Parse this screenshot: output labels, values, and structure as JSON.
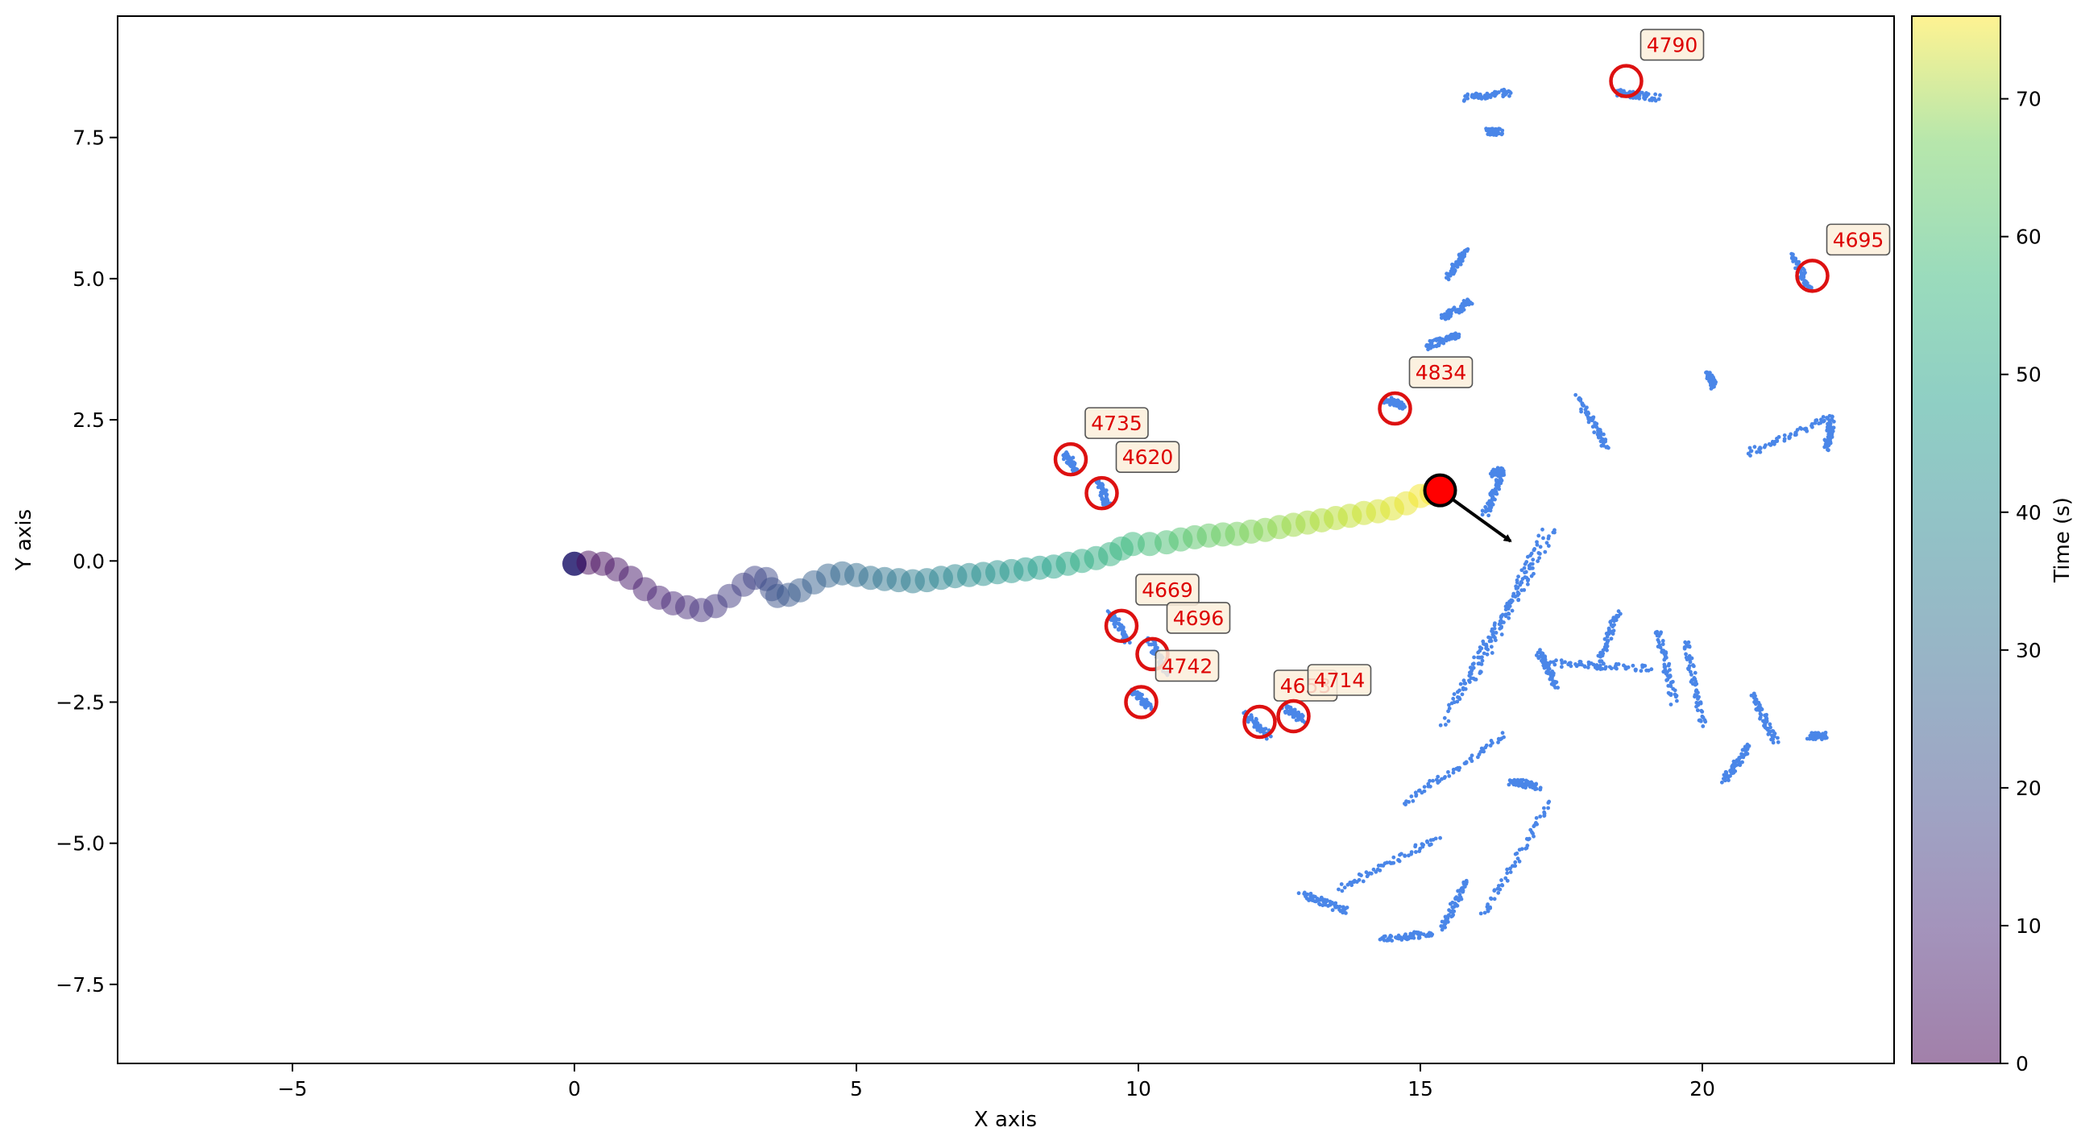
{
  "chart_data": {
    "type": "scatter",
    "xlabel": "X axis",
    "ylabel": "Y axis",
    "xlim": [
      -8.1,
      23.4
    ],
    "ylim": [
      -8.9,
      9.65
    ],
    "xticks": [
      -5,
      0,
      5,
      10,
      15,
      20
    ],
    "yticks": [
      -7.5,
      -5.0,
      -2.5,
      0.0,
      2.5,
      5.0,
      7.5
    ],
    "xtick_labels": [
      "−5",
      "0",
      "5",
      "10",
      "15",
      "20"
    ],
    "ytick_labels": [
      "−7.5",
      "−5.0",
      "−2.5",
      "0.0",
      "2.5",
      "5.0",
      "7.5"
    ],
    "colorbar": {
      "label": "Time (s)",
      "range": [
        0,
        76
      ],
      "ticks": [
        0,
        10,
        20,
        30,
        40,
        50,
        60,
        70
      ],
      "colormap": "viridis",
      "alpha": 0.5
    },
    "trajectory": {
      "points": [
        [
          0.0,
          -0.05
        ],
        [
          0.25,
          -0.03
        ],
        [
          0.5,
          -0.05
        ],
        [
          0.75,
          -0.15
        ],
        [
          1.0,
          -0.3
        ],
        [
          1.25,
          -0.5
        ],
        [
          1.5,
          -0.65
        ],
        [
          1.75,
          -0.75
        ],
        [
          2.0,
          -0.82
        ],
        [
          2.25,
          -0.87
        ],
        [
          2.5,
          -0.8
        ],
        [
          2.75,
          -0.62
        ],
        [
          3.0,
          -0.42
        ],
        [
          3.2,
          -0.3
        ],
        [
          3.4,
          -0.32
        ],
        [
          3.5,
          -0.5
        ],
        [
          3.6,
          -0.62
        ],
        [
          3.8,
          -0.6
        ],
        [
          4.0,
          -0.52
        ],
        [
          4.25,
          -0.38
        ],
        [
          4.5,
          -0.26
        ],
        [
          4.75,
          -0.22
        ],
        [
          5.0,
          -0.25
        ],
        [
          5.25,
          -0.3
        ],
        [
          5.5,
          -0.32
        ],
        [
          5.75,
          -0.34
        ],
        [
          6.0,
          -0.36
        ],
        [
          6.25,
          -0.34
        ],
        [
          6.5,
          -0.3
        ],
        [
          6.75,
          -0.27
        ],
        [
          7.0,
          -0.25
        ],
        [
          7.25,
          -0.23
        ],
        [
          7.5,
          -0.2
        ],
        [
          7.75,
          -0.18
        ],
        [
          8.0,
          -0.15
        ],
        [
          8.25,
          -0.12
        ],
        [
          8.5,
          -0.1
        ],
        [
          8.75,
          -0.05
        ],
        [
          9.0,
          0.0
        ],
        [
          9.25,
          0.05
        ],
        [
          9.5,
          0.12
        ],
        [
          9.7,
          0.22
        ],
        [
          9.9,
          0.3
        ],
        [
          10.2,
          0.3
        ],
        [
          10.5,
          0.33
        ],
        [
          10.75,
          0.38
        ],
        [
          11.0,
          0.42
        ],
        [
          11.25,
          0.45
        ],
        [
          11.5,
          0.47
        ],
        [
          11.75,
          0.48
        ],
        [
          12.0,
          0.52
        ],
        [
          12.25,
          0.55
        ],
        [
          12.5,
          0.6
        ],
        [
          12.75,
          0.64
        ],
        [
          13.0,
          0.68
        ],
        [
          13.25,
          0.72
        ],
        [
          13.5,
          0.76
        ],
        [
          13.75,
          0.8
        ],
        [
          14.0,
          0.85
        ],
        [
          14.25,
          0.88
        ],
        [
          14.5,
          0.93
        ],
        [
          14.75,
          1.02
        ],
        [
          15.0,
          1.15
        ],
        [
          15.2,
          1.2
        ]
      ],
      "time_range": [
        0,
        76
      ]
    },
    "current_pose": {
      "x": 15.35,
      "y": 1.25,
      "heading_end": [
        16.6,
        0.35
      ]
    },
    "obstacle_color": "#4a86e8",
    "obstacles": [
      {
        "x": [
          16.15,
          16.45
        ],
        "y": [
          0.85,
          1.55
        ]
      },
      {
        "x": [
          16.3,
          16.45
        ],
        "y": [
          1.55,
          1.6
        ]
      },
      {
        "x": [
          15.4,
          17.0
        ],
        "y": [
          -2.9,
          0.0
        ]
      },
      {
        "x": [
          15.6,
          17.2
        ],
        "y": [
          -2.5,
          0.5
        ]
      },
      {
        "x": [
          15.9,
          17.35
        ],
        "y": [
          -2.2,
          0.55
        ]
      },
      {
        "x": [
          17.2,
          19.1
        ],
        "y": [
          -1.8,
          -1.9
        ]
      },
      {
        "x": [
          17.1,
          17.4
        ],
        "y": [
          -1.6,
          -2.2
        ]
      },
      {
        "x": [
          18.15,
          18.5
        ],
        "y": [
          -1.9,
          -0.9
        ]
      },
      {
        "x": [
          19.2,
          19.5
        ],
        "y": [
          -1.2,
          -2.5
        ]
      },
      {
        "x": [
          19.7,
          20.0
        ],
        "y": [
          -1.4,
          -2.9
        ]
      },
      {
        "x": [
          14.7,
          16.5
        ],
        "y": [
          -4.3,
          -3.1
        ]
      },
      {
        "x": [
          13.6,
          15.3
        ],
        "y": [
          -5.8,
          -4.9
        ]
      },
      {
        "x": [
          12.9,
          13.7
        ],
        "y": [
          -5.9,
          -6.2
        ]
      },
      {
        "x": [
          14.3,
          15.2
        ],
        "y": [
          -6.7,
          -6.6
        ]
      },
      {
        "x": [
          15.4,
          15.8
        ],
        "y": [
          -6.5,
          -5.7
        ]
      },
      {
        "x": [
          16.1,
          17.3
        ],
        "y": [
          -6.3,
          -4.3
        ]
      },
      {
        "x": [
          16.6,
          17.1
        ],
        "y": [
          -3.9,
          -4.0
        ]
      },
      {
        "x": [
          20.4,
          20.8
        ],
        "y": [
          -3.9,
          -3.3
        ]
      },
      {
        "x": [
          20.9,
          21.3
        ],
        "y": [
          -2.4,
          -3.2
        ]
      },
      {
        "x": [
          21.9,
          22.2
        ],
        "y": [
          -3.1,
          -3.1
        ]
      },
      {
        "x": [
          20.8,
          22.3
        ],
        "y": [
          1.9,
          2.55
        ]
      },
      {
        "x": [
          22.2,
          22.3
        ],
        "y": [
          2.0,
          2.5
        ]
      },
      {
        "x": [
          17.8,
          18.3
        ],
        "y": [
          2.9,
          2.0
        ]
      },
      {
        "x": [
          15.1,
          15.7
        ],
        "y": [
          3.8,
          4.0
        ]
      },
      {
        "x": [
          15.4,
          15.9
        ],
        "y": [
          4.3,
          4.6
        ]
      },
      {
        "x": [
          15.5,
          15.8
        ],
        "y": [
          5.0,
          5.5
        ]
      },
      {
        "x": [
          16.2,
          16.4
        ],
        "y": [
          7.6,
          7.6
        ]
      },
      {
        "x": [
          15.8,
          16.6
        ],
        "y": [
          8.2,
          8.3
        ]
      },
      {
        "x": [
          18.5,
          19.2
        ],
        "y": [
          8.3,
          8.2
        ]
      },
      {
        "x": [
          21.6,
          21.9
        ],
        "y": [
          5.4,
          4.8
        ]
      },
      {
        "x": [
          20.1,
          20.2
        ],
        "y": [
          3.3,
          3.1
        ]
      },
      {
        "x": [
          9.3,
          9.45
        ],
        "y": [
          1.4,
          1.0
        ]
      },
      {
        "x": [
          8.7,
          8.9
        ],
        "y": [
          1.9,
          1.6
        ]
      },
      {
        "x": [
          14.4,
          14.7
        ],
        "y": [
          2.85,
          2.75
        ]
      },
      {
        "x": [
          9.5,
          9.8
        ],
        "y": [
          -0.9,
          -1.4
        ]
      },
      {
        "x": [
          10.2,
          10.5
        ],
        "y": [
          -1.4,
          -2.0
        ]
      },
      {
        "x": [
          9.9,
          10.2
        ],
        "y": [
          -2.3,
          -2.6
        ]
      },
      {
        "x": [
          11.9,
          12.3
        ],
        "y": [
          -2.7,
          -3.1
        ]
      },
      {
        "x": [
          12.6,
          12.9
        ],
        "y": [
          -2.6,
          -2.8
        ]
      }
    ],
    "annotations": [
      {
        "label": "4790",
        "x": 18.65,
        "y": 8.5
      },
      {
        "label": "4695",
        "x": 21.95,
        "y": 5.05
      },
      {
        "label": "4834",
        "x": 14.55,
        "y": 2.7
      },
      {
        "label": "4735",
        "x": 8.8,
        "y": 1.8
      },
      {
        "label": "4620",
        "x": 9.35,
        "y": 1.2
      },
      {
        "label": "4669",
        "x": 9.7,
        "y": -1.15
      },
      {
        "label": "4696",
        "x": 10.25,
        "y": -1.65
      },
      {
        "label": "4742",
        "x": 10.05,
        "y": -2.5
      },
      {
        "label": "4653",
        "x": 12.15,
        "y": -2.85
      },
      {
        "label": "4714",
        "x": 12.75,
        "y": -2.75
      }
    ]
  }
}
